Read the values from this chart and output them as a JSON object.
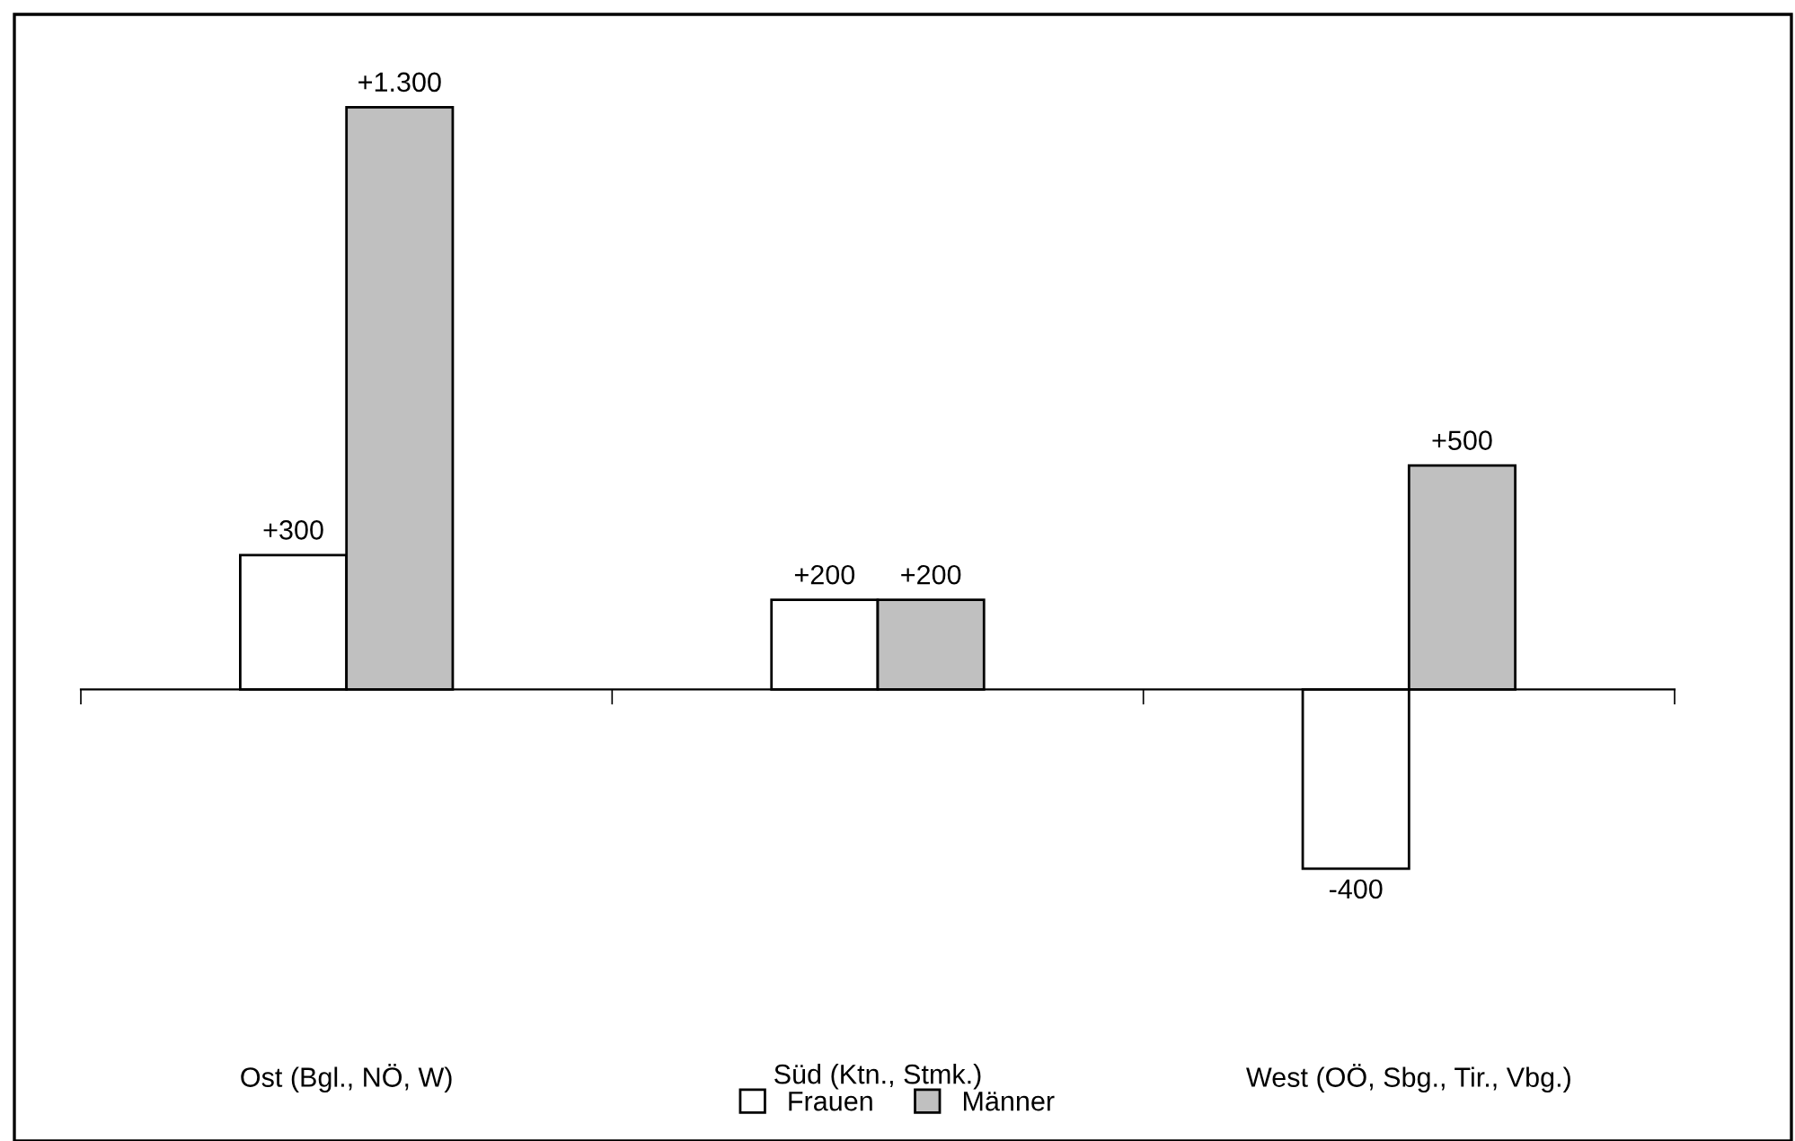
{
  "chart_data": {
    "type": "bar",
    "categories": [
      "Ost (Bgl., NÖ, W)",
      "Süd (Ktn., Stmk.)",
      "West (OÖ, Sbg., Tir., Vbg.)"
    ],
    "series": [
      {
        "name": "Frauen",
        "color": "#ffffff",
        "values": [
          300,
          200,
          -400
        ],
        "value_labels": [
          "+300",
          "+200",
          "-400"
        ]
      },
      {
        "name": "Männer",
        "color": "#c0c0c0",
        "values": [
          1300,
          200,
          500
        ],
        "value_labels": [
          "+1.300",
          "+200",
          "+500"
        ]
      }
    ],
    "legend": "bottom",
    "grid": false
  }
}
